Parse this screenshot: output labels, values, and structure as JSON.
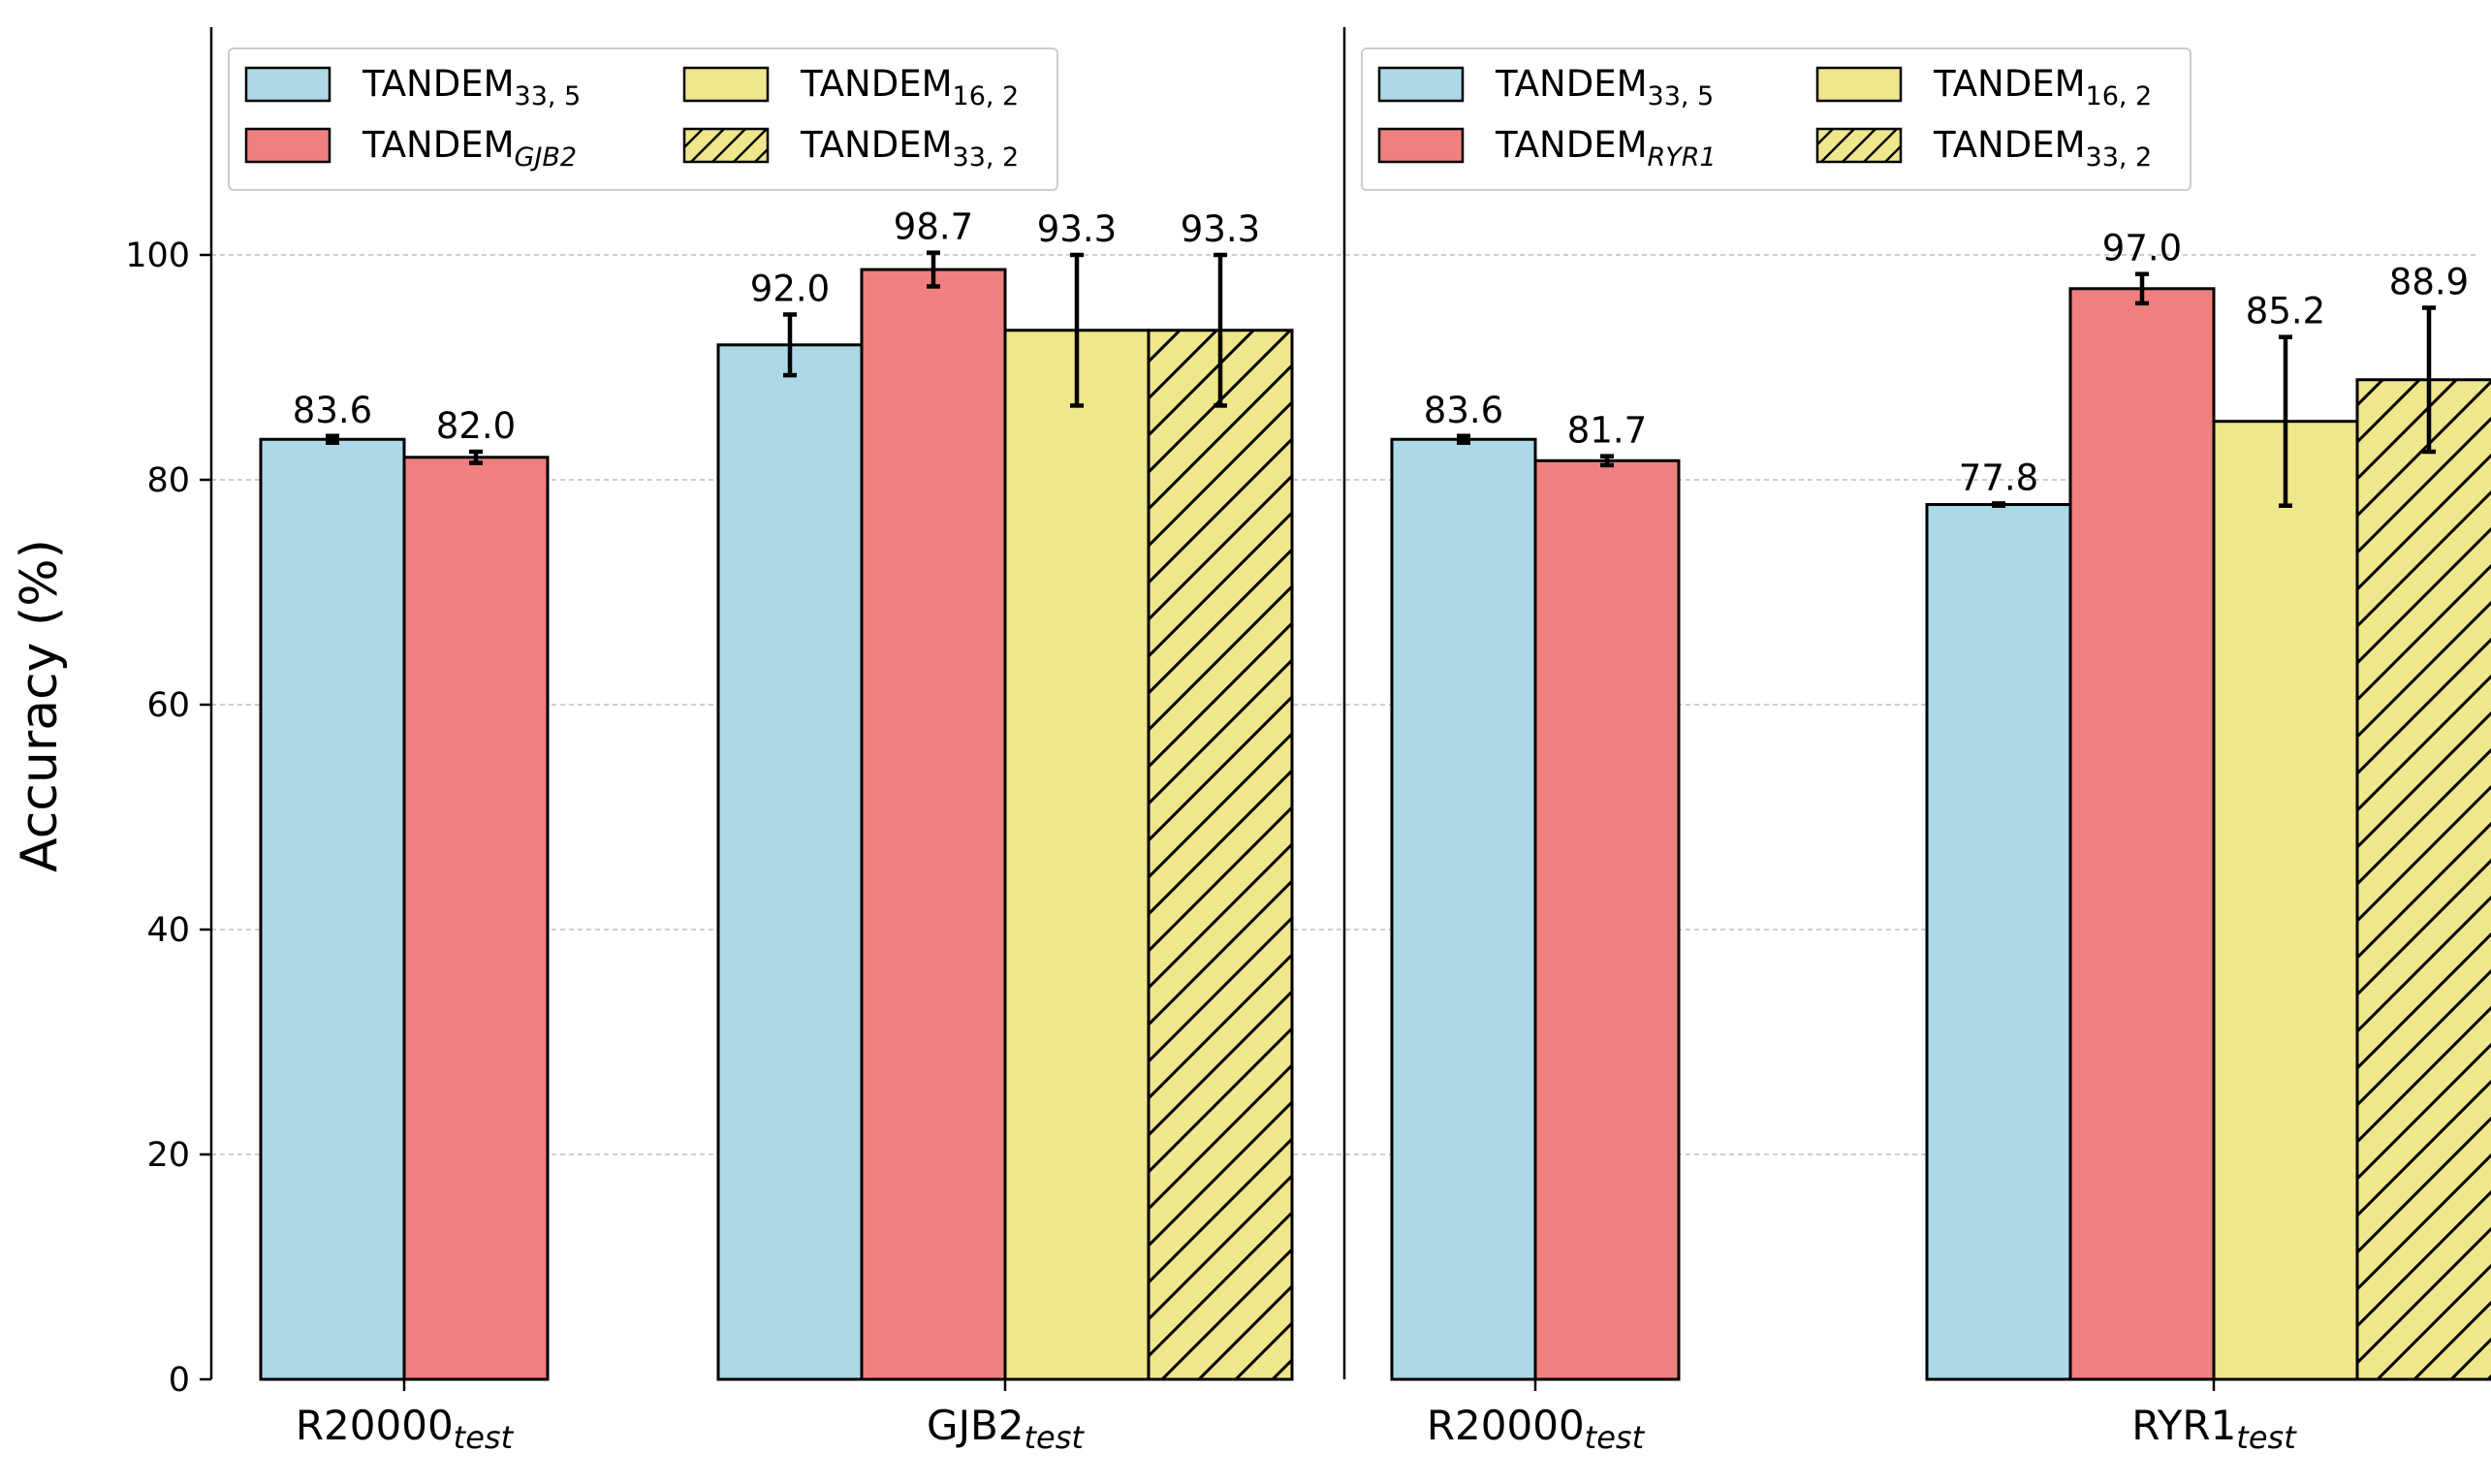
{
  "chart_data": {
    "type": "bar",
    "ylabel": "Accuracy (%)",
    "ylim": [
      0,
      120
    ],
    "yticks": [
      0,
      20,
      40,
      60,
      80,
      100
    ],
    "grid": "horizontal dashed",
    "colors": {
      "blue": "#add8e6",
      "red": "#f08080",
      "yellow": "#f0e68c",
      "edge": "#000000",
      "grid": "#b0b0b0"
    },
    "panels": [
      {
        "legend_position": "top-left",
        "legend": [
          {
            "key": "t335",
            "base": "TANDEM",
            "sub": "33, 5",
            "sub_italic": false,
            "color": "blue",
            "hatch": false
          },
          {
            "key": "tgene",
            "base": "TANDEM",
            "sub": "GJB2",
            "sub_italic": true,
            "color": "red",
            "hatch": false
          },
          {
            "key": "t162",
            "base": "TANDEM",
            "sub": "16, 2",
            "sub_italic": false,
            "color": "yellow",
            "hatch": false
          },
          {
            "key": "t332",
            "base": "TANDEM",
            "sub": "33, 2",
            "sub_italic": false,
            "color": "yellow",
            "hatch": true
          }
        ],
        "groups": [
          {
            "label_base": "R20000",
            "label_sub": "test",
            "bars": [
              {
                "series": "t335",
                "value": 83.6,
                "err": 0.3,
                "label": "83.6"
              },
              {
                "series": "tgene",
                "value": 82.0,
                "err": 0.5,
                "label": "82.0"
              }
            ]
          },
          {
            "label_base": "GJB2",
            "label_sub": "test",
            "bars": [
              {
                "series": "t335",
                "value": 92.0,
                "err": 2.7,
                "label": "92.0"
              },
              {
                "series": "tgene",
                "value": 98.7,
                "err": 1.5,
                "label": "98.7"
              },
              {
                "series": "t162",
                "value": 93.3,
                "err": 6.7,
                "label": "93.3"
              },
              {
                "series": "t332",
                "value": 93.3,
                "err": 6.7,
                "label": "93.3"
              }
            ]
          }
        ]
      },
      {
        "legend_position": "top-left",
        "legend": [
          {
            "key": "t335",
            "base": "TANDEM",
            "sub": "33, 5",
            "sub_italic": false,
            "color": "blue",
            "hatch": false
          },
          {
            "key": "tgene",
            "base": "TANDEM",
            "sub": "RYR1",
            "sub_italic": true,
            "color": "red",
            "hatch": false
          },
          {
            "key": "t162",
            "base": "TANDEM",
            "sub": "16, 2",
            "sub_italic": false,
            "color": "yellow",
            "hatch": false
          },
          {
            "key": "t332",
            "base": "TANDEM",
            "sub": "33, 2",
            "sub_italic": false,
            "color": "yellow",
            "hatch": true
          }
        ],
        "groups": [
          {
            "label_base": "R20000",
            "label_sub": "test",
            "bars": [
              {
                "series": "t335",
                "value": 83.6,
                "err": 0.3,
                "label": "83.6"
              },
              {
                "series": "tgene",
                "value": 81.7,
                "err": 0.4,
                "label": "81.7"
              }
            ]
          },
          {
            "label_base": "RYR1",
            "label_sub": "test",
            "bars": [
              {
                "series": "t335",
                "value": 77.8,
                "err": 0.1,
                "label": "77.8"
              },
              {
                "series": "tgene",
                "value": 97.0,
                "err": 1.3,
                "label": "97.0"
              },
              {
                "series": "t162",
                "value": 85.2,
                "err": 7.5,
                "label": "85.2"
              },
              {
                "series": "t332",
                "value": 88.9,
                "err": 6.4,
                "label": "88.9"
              }
            ]
          }
        ]
      }
    ]
  }
}
